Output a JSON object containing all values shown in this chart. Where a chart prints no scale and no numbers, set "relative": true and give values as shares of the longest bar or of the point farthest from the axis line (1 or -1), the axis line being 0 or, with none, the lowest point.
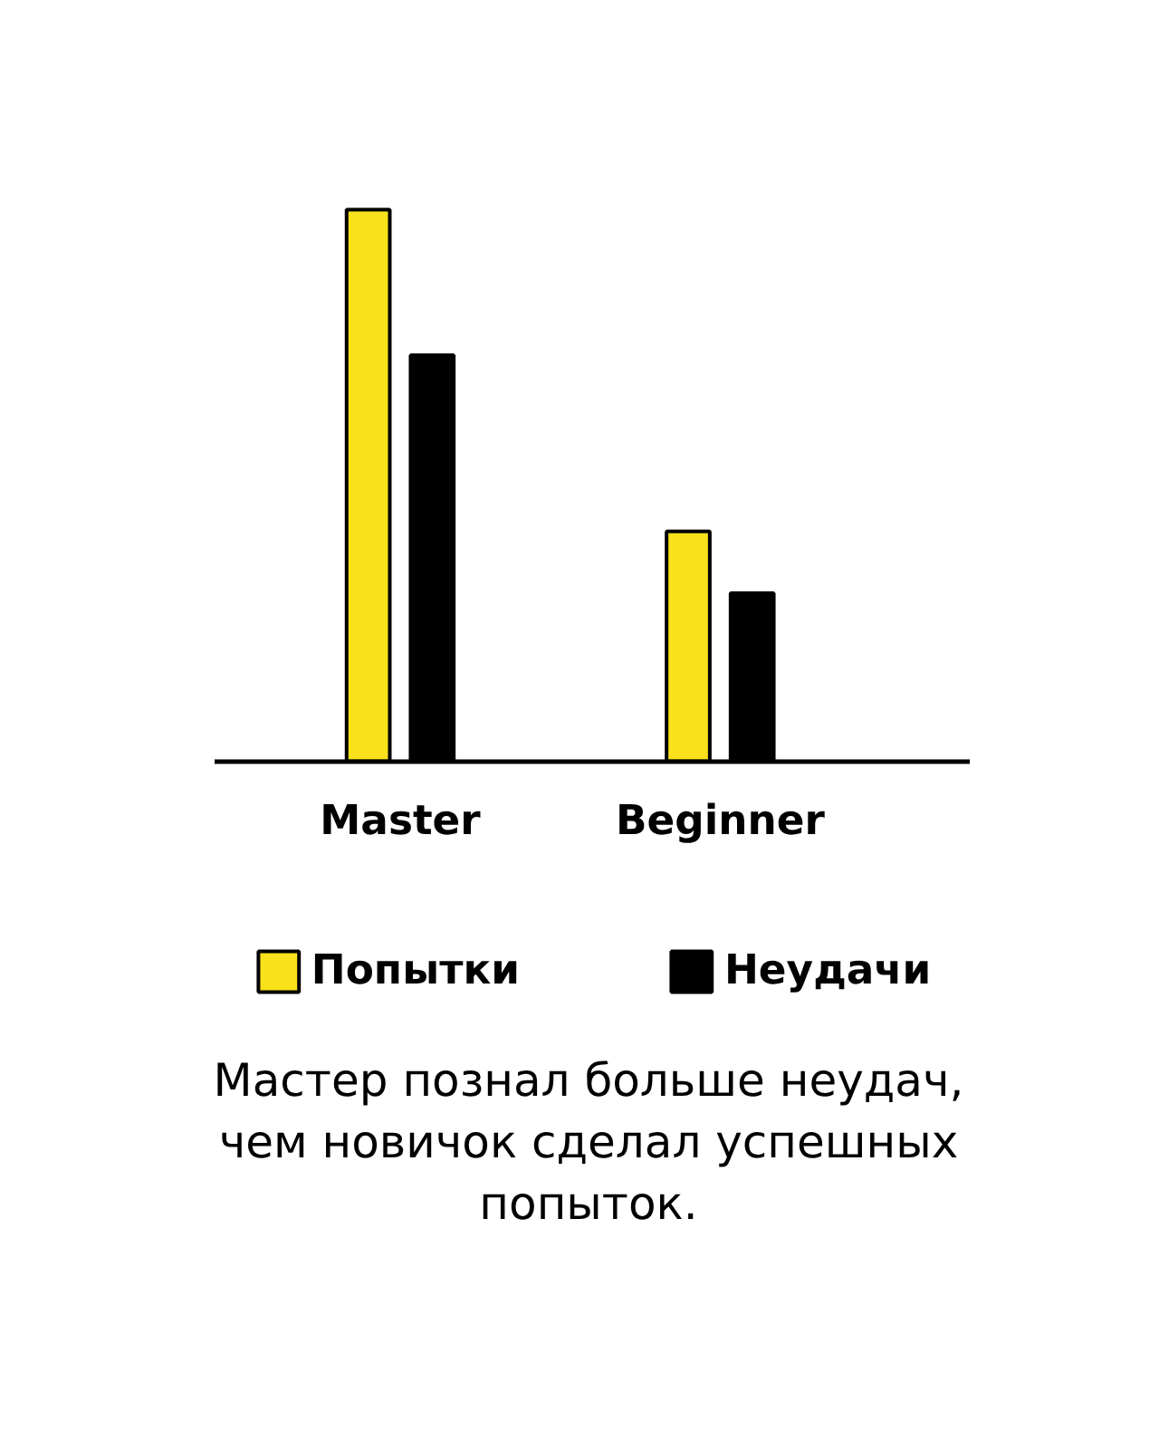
{
  "chart_data": {
    "type": "bar",
    "relative": true,
    "categories": [
      "Master",
      "Beginner"
    ],
    "series": [
      {
        "name": "Попытки",
        "color": "#f9e21b",
        "values": [
          1,
          0.417
        ]
      },
      {
        "name": "Неудачи",
        "color": "#000000",
        "values": [
          0.736,
          0.305
        ]
      }
    ],
    "legend": "bottom",
    "annotations": [
      "Мастер познал больше неудач, чем новичок сделал успешных попыток."
    ]
  }
}
